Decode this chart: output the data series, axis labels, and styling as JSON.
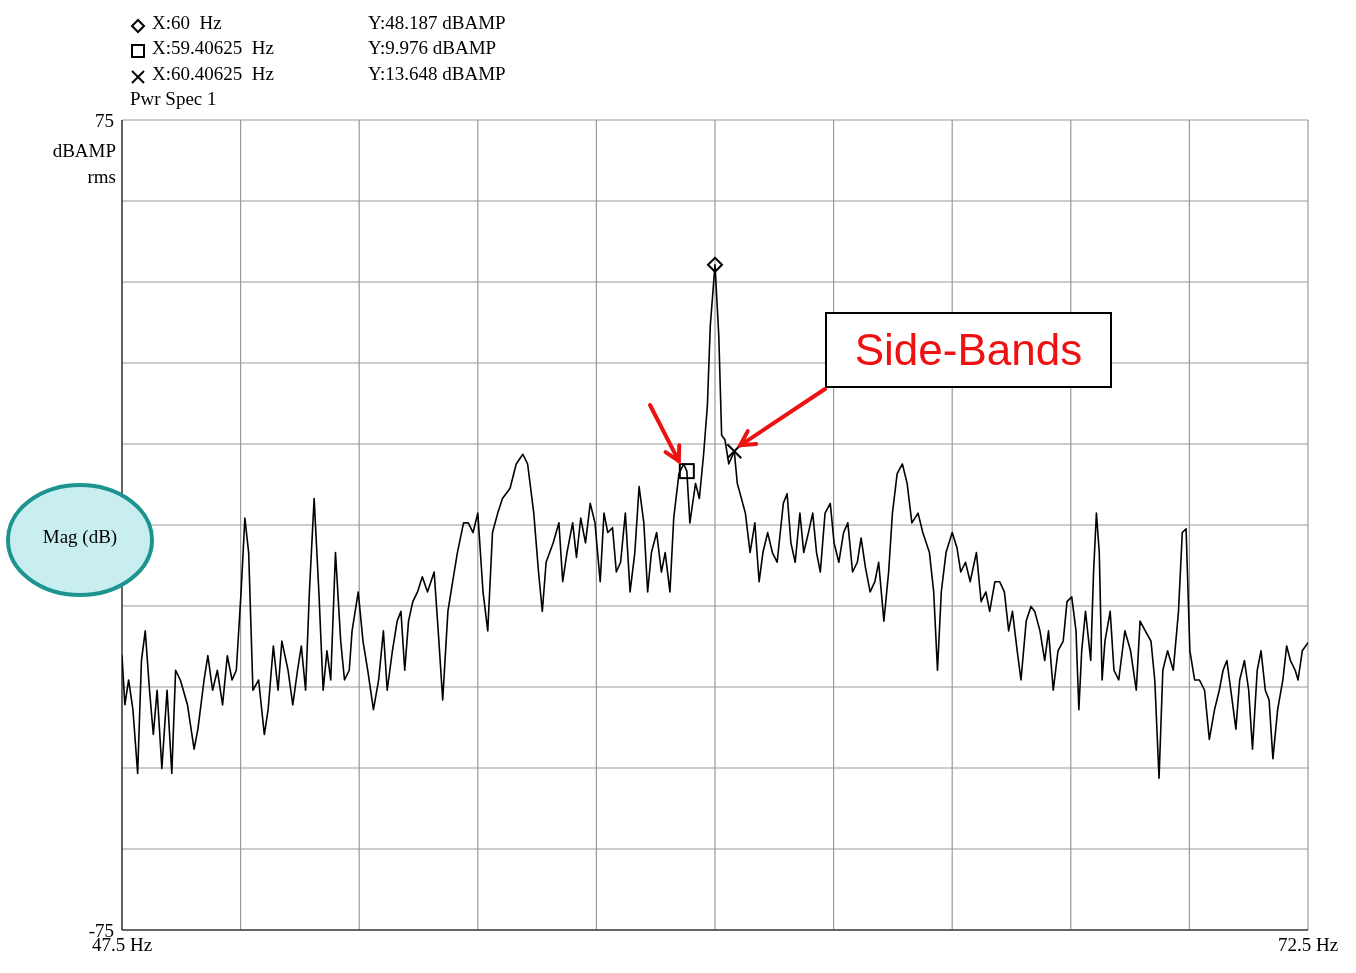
{
  "chart_data": {
    "type": "line",
    "ylabel": "dBAMP rms",
    "xlim": [
      47.5,
      72.5
    ],
    "ylim": [
      -75,
      75
    ],
    "xticks": [
      {
        "value": 47.5,
        "label": "47.5 Hz"
      },
      {
        "value": 50,
        "label": null
      },
      {
        "value": 52.5,
        "label": null
      },
      {
        "value": 55,
        "label": null
      },
      {
        "value": 57.5,
        "label": null
      },
      {
        "value": 60,
        "label": null
      },
      {
        "value": 62.5,
        "label": null
      },
      {
        "value": 65,
        "label": null
      },
      {
        "value": 67.5,
        "label": null
      },
      {
        "value": 70,
        "label": null
      },
      {
        "value": 72.5,
        "label": "72.5 Hz"
      }
    ],
    "yticks": [
      {
        "value": 75,
        "label": "75"
      },
      {
        "value": 60,
        "label": null
      },
      {
        "value": 45,
        "label": null
      },
      {
        "value": 30,
        "label": null
      },
      {
        "value": 15,
        "label": null
      },
      {
        "value": 0,
        "label": null
      },
      {
        "value": -15,
        "label": null
      },
      {
        "value": -30,
        "label": null
      },
      {
        "value": -45,
        "label": null
      },
      {
        "value": -60,
        "label": null
      },
      {
        "value": -75,
        "label": "-75"
      }
    ],
    "grid": true,
    "annotations": [
      "X:60  Hz",
      "Y:48.187 dBAMP",
      "X:59.40625  Hz",
      "Y:9.976 dBAMP",
      "X:60.40625  Hz",
      "Y:13.648 dBAMP",
      "Pwr Spec 1",
      "Mag (dB)",
      {
        "text": "Side-Bands",
        "x": 60.40625,
        "y": 13.648
      }
    ],
    "series": [
      {
        "color": "#000000",
        "x": [
          47.5,
          47.56,
          47.64,
          47.73,
          47.83,
          47.91,
          47.99,
          48.08,
          48.16,
          48.24,
          48.34,
          48.45,
          48.55,
          48.63,
          48.73,
          48.88,
          49.02,
          49.1,
          49.23,
          49.31,
          49.41,
          49.51,
          49.62,
          49.72,
          49.82,
          49.91,
          50.01,
          50.09,
          50.17,
          50.26,
          50.38,
          50.5,
          50.58,
          50.69,
          50.79,
          50.87,
          51.0,
          51.1,
          51.2,
          51.28,
          51.37,
          51.45,
          51.55,
          51.65,
          51.74,
          51.82,
          51.9,
          52.0,
          52.11,
          52.19,
          52.29,
          52.35,
          52.48,
          52.58,
          52.68,
          52.8,
          52.91,
          53.01,
          53.09,
          53.2,
          53.3,
          53.38,
          53.46,
          53.54,
          53.63,
          53.73,
          53.83,
          53.94,
          54.08,
          54.18,
          54.26,
          54.37,
          54.47,
          54.57,
          54.7,
          54.8,
          54.9,
          55.0,
          55.11,
          55.21,
          55.31,
          55.42,
          55.52,
          55.68,
          55.81,
          55.95,
          56.05,
          56.18,
          56.28,
          56.36,
          56.44,
          56.59,
          56.71,
          56.79,
          56.88,
          57.0,
          57.08,
          57.17,
          57.27,
          57.37,
          57.47,
          57.58,
          57.66,
          57.74,
          57.84,
          57.92,
          58.01,
          58.11,
          58.21,
          58.31,
          58.4,
          58.5,
          58.58,
          58.66,
          58.77,
          58.87,
          58.95,
          59.05,
          59.13,
          59.24,
          59.34,
          59.40625,
          59.47,
          59.59,
          59.67,
          59.76,
          59.84,
          59.9,
          60,
          60.08,
          60.14,
          60.21,
          60.29,
          60.40625,
          60.47,
          60.53,
          60.64,
          60.74,
          60.84,
          60.93,
          61.01,
          61.11,
          61.21,
          61.31,
          61.44,
          61.52,
          61.6,
          61.69,
          61.79,
          61.87,
          61.97,
          62.06,
          62.14,
          62.22,
          62.32,
          62.43,
          62.51,
          62.61,
          62.71,
          62.8,
          62.9,
          63.0,
          63.08,
          63.17,
          63.27,
          63.37,
          63.45,
          63.56,
          63.66,
          63.74,
          63.84,
          63.95,
          64.05,
          64.15,
          64.28,
          64.38,
          64.52,
          64.61,
          64.69,
          64.77,
          64.87,
          65.0,
          65.1,
          65.18,
          65.28,
          65.38,
          65.51,
          65.61,
          65.71,
          65.79,
          65.9,
          66.0,
          66.1,
          66.19,
          66.27,
          66.37,
          66.45,
          66.56,
          66.66,
          66.74,
          66.85,
          66.95,
          67.03,
          67.13,
          67.23,
          67.34,
          67.42,
          67.52,
          67.61,
          67.67,
          67.73,
          67.81,
          67.92,
          67.98,
          68.04,
          68.1,
          68.16,
          68.22,
          68.33,
          68.41,
          68.51,
          68.64,
          68.76,
          68.88,
          68.96,
          69.07,
          69.19,
          69.27,
          69.36,
          69.44,
          69.54,
          69.66,
          69.77,
          69.85,
          69.93,
          70.01,
          70.11,
          70.21,
          70.32,
          70.42,
          70.53,
          70.63,
          70.71,
          70.79,
          70.9,
          70.98,
          71.06,
          71.16,
          71.25,
          71.33,
          71.43,
          71.51,
          71.6,
          71.68,
          71.76,
          71.86,
          71.97,
          72.05,
          72.13,
          72.23,
          72.29,
          72.38,
          72.5
        ],
        "values": [
          -24.2,
          -33.3,
          -28.7,
          -34.2,
          -46.0,
          -25.1,
          -19.6,
          -30.6,
          -38.8,
          -30.6,
          -45.1,
          -30.6,
          -46.0,
          -26.9,
          -28.7,
          -33.3,
          -41.5,
          -37.8,
          -28.7,
          -24.2,
          -30.6,
          -26.9,
          -33.3,
          -24.2,
          -28.7,
          -26.9,
          -12.4,
          1.3,
          -5.1,
          -30.6,
          -28.7,
          -38.8,
          -34.2,
          -22.4,
          -30.6,
          -21.5,
          -26.9,
          -33.3,
          -26.9,
          -22.4,
          -30.6,
          -12.4,
          4.9,
          -12.4,
          -30.6,
          -23.3,
          -28.7,
          -5.1,
          -21.5,
          -28.7,
          -26.9,
          -19.6,
          -12.4,
          -21.5,
          -26.9,
          -34.2,
          -28.7,
          -19.6,
          -30.6,
          -23.3,
          -17.8,
          -16.0,
          -26.9,
          -17.8,
          -14.2,
          -12.4,
          -9.6,
          -12.4,
          -8.7,
          -21.5,
          -32.4,
          -16.0,
          -10.5,
          -5.1,
          0.4,
          0.4,
          -1.4,
          2.2,
          -12.4,
          -19.6,
          -1.4,
          2.2,
          4.9,
          6.8,
          11.3,
          13.1,
          11.3,
          2.2,
          -8.7,
          -16.0,
          -6.9,
          -3.3,
          0.4,
          -10.5,
          -5.1,
          0.4,
          -6.0,
          1.3,
          -3.3,
          4.0,
          0.4,
          -10.5,
          2.2,
          -1.4,
          -0.5,
          -8.7,
          -6.9,
          2.2,
          -12.4,
          -5.1,
          7.1,
          0.4,
          -12.4,
          -5.1,
          -1.4,
          -8.7,
          -5.1,
          -12.4,
          1.3,
          9.5,
          11.3,
          9.976,
          0.4,
          7.7,
          4.9,
          13.1,
          22.2,
          36.8,
          48.187,
          35.0,
          16.6,
          15.8,
          11.3,
          13.648,
          7.7,
          5.8,
          2.2,
          -5.1,
          0.4,
          -10.5,
          -5.1,
          -1.4,
          -5.1,
          -6.9,
          4.0,
          5.8,
          -3.3,
          -6.9,
          2.2,
          -5.1,
          -1.4,
          2.2,
          -5.1,
          -8.7,
          2.2,
          4.0,
          -3.3,
          -6.9,
          -1.4,
          0.4,
          -8.7,
          -6.9,
          -2.4,
          -7.8,
          -12.4,
          -10.5,
          -6.9,
          -17.8,
          -8.7,
          2.2,
          9.5,
          11.3,
          7.7,
          0.4,
          2.2,
          -1.4,
          -5.1,
          -12.4,
          -26.9,
          -12.4,
          -5.1,
          -1.4,
          -4.2,
          -8.7,
          -6.9,
          -10.5,
          -5.1,
          -14.2,
          -12.4,
          -16.0,
          -10.5,
          -10.5,
          -12.4,
          -19.6,
          -16.0,
          -23.3,
          -28.7,
          -17.8,
          -15.1,
          -16.0,
          -19.6,
          -25.1,
          -19.6,
          -30.6,
          -23.3,
          -21.5,
          -14.2,
          -13.3,
          -19.6,
          -34.2,
          -23.3,
          -16.0,
          -25.1,
          -8.7,
          2.2,
          -5.1,
          -28.7,
          -21.5,
          -16.0,
          -26.9,
          -28.7,
          -19.6,
          -23.3,
          -30.6,
          -17.8,
          -19.6,
          -21.5,
          -28.7,
          -46.9,
          -26.9,
          -23.3,
          -26.9,
          -16.0,
          -1.4,
          -0.7,
          -23.3,
          -28.7,
          -28.7,
          -30.6,
          -39.7,
          -34.2,
          -30.6,
          -26.9,
          -25.1,
          -32.4,
          -37.8,
          -28.7,
          -25.1,
          -30.6,
          -41.5,
          -26.9,
          -23.3,
          -30.6,
          -32.4,
          -43.3,
          -34.2,
          -28.7,
          -22.4,
          -25.1,
          -26.9,
          -28.7,
          -23.3,
          -21.8
        ]
      },
      {
        "type": "scatter",
        "marker": "diamond",
        "color": "#000000",
        "x": [
          60
        ],
        "values": [
          48.187
        ]
      },
      {
        "type": "scatter",
        "marker": "square",
        "color": "#000000",
        "x": [
          59.40625
        ],
        "values": [
          9.976
        ]
      },
      {
        "type": "scatter",
        "marker": "cross",
        "color": "#000000",
        "x": [
          60.40625
        ],
        "values": [
          13.648
        ]
      }
    ]
  }
}
